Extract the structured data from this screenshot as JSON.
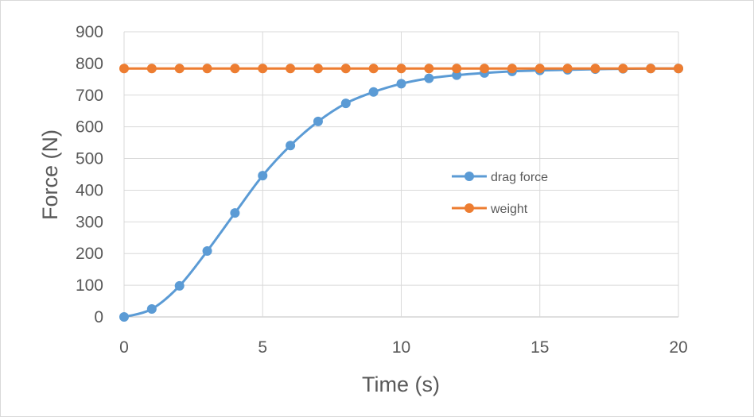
{
  "chart_data": {
    "type": "line",
    "title": "",
    "xlabel": "Time (s)",
    "ylabel": "Force (N)",
    "xlim": [
      0,
      20
    ],
    "ylim": [
      0,
      900
    ],
    "xticks": [
      0,
      5,
      10,
      15,
      20
    ],
    "yticks": [
      0,
      100,
      200,
      300,
      400,
      500,
      600,
      700,
      800,
      900
    ],
    "grid": true,
    "legend_position": "right-center",
    "x": [
      0,
      1,
      2,
      3,
      4,
      5,
      6,
      7,
      8,
      9,
      10,
      11,
      12,
      13,
      14,
      15,
      16,
      17,
      18,
      19,
      20
    ],
    "series": [
      {
        "name": "drag force",
        "color": "#5b9bd5",
        "values": [
          0,
          25,
          98,
          208,
          328,
          446,
          541,
          617,
          674,
          710,
          736,
          753,
          763,
          770,
          775,
          778,
          780,
          782,
          783,
          784,
          784
        ]
      },
      {
        "name": "weight",
        "color": "#ed7d31",
        "values": [
          784,
          784,
          784,
          784,
          784,
          784,
          784,
          784,
          784,
          784,
          784,
          784,
          784,
          784,
          784,
          784,
          784,
          784,
          784,
          784,
          784
        ]
      }
    ]
  }
}
